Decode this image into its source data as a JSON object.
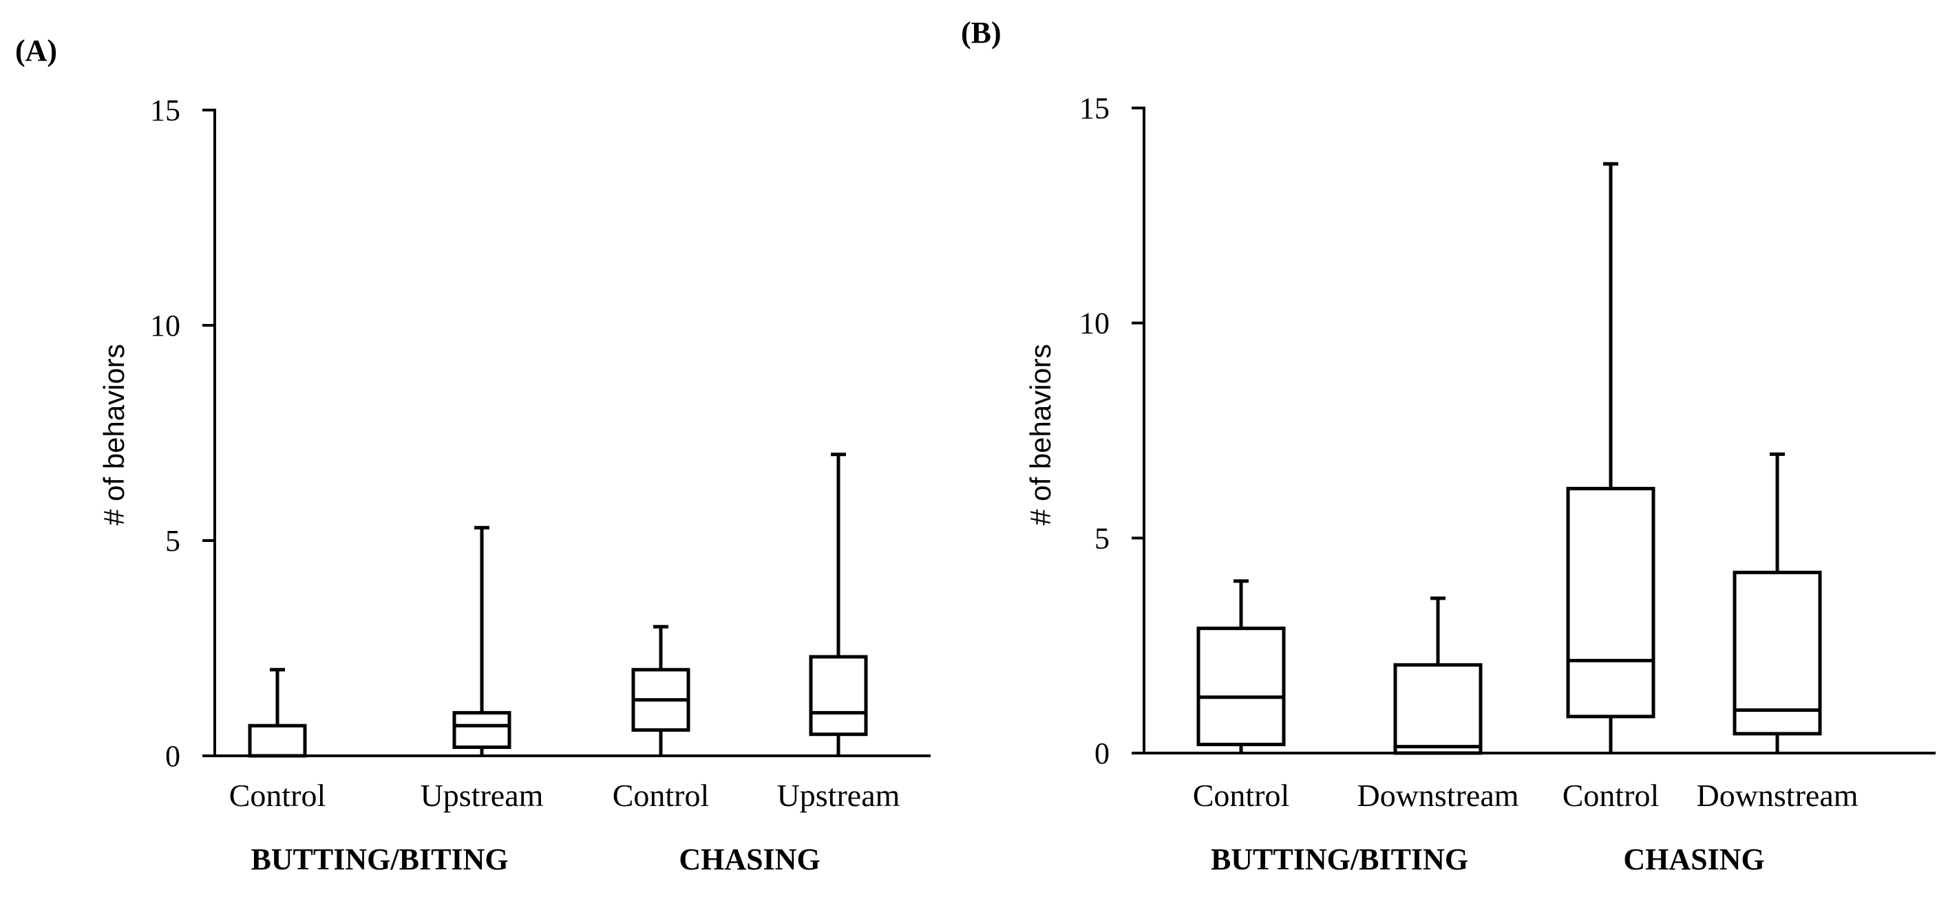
{
  "chart_data": [
    {
      "type": "box",
      "panel_label": "(A)",
      "ylabel": "# of behaviors",
      "ylim": [
        0,
        15
      ],
      "yticks": [
        0,
        5,
        10,
        15
      ],
      "ytick_labels": [
        "0",
        "5",
        "10",
        "15"
      ],
      "categories": [
        "Control",
        "Upstream",
        "Control",
        "Upstream"
      ],
      "groups": [
        {
          "label": "BUTTING/BITING",
          "span": [
            0,
            1
          ]
        },
        {
          "label": "CHASING",
          "span": [
            2,
            3
          ]
        }
      ],
      "boxes": [
        {
          "min": 0,
          "q1": 0,
          "median": 0,
          "q3": 0.7,
          "max": 2
        },
        {
          "min": 0,
          "q1": 0.2,
          "median": 0.7,
          "q3": 1.0,
          "max": 5.3
        },
        {
          "min": 0,
          "q1": 0.6,
          "median": 1.3,
          "q3": 2.0,
          "max": 3
        },
        {
          "min": 0,
          "q1": 0.5,
          "median": 1.0,
          "q3": 2.3,
          "max": 7
        }
      ]
    },
    {
      "type": "box",
      "panel_label": "(B)",
      "ylabel": "# of behaviors",
      "ylim": [
        0,
        15
      ],
      "yticks": [
        0,
        5,
        10,
        15
      ],
      "ytick_labels": [
        "0",
        "5",
        "10",
        "15"
      ],
      "categories": [
        "Control",
        "Downstream",
        "Control",
        "Downstream"
      ],
      "groups": [
        {
          "label": "BUTTING/BITING",
          "span": [
            0,
            1
          ]
        },
        {
          "label": "CHASING",
          "span": [
            2,
            3
          ]
        }
      ],
      "boxes": [
        {
          "min": 0,
          "q1": 0.2,
          "median": 1.3,
          "q3": 2.9,
          "max": 4
        },
        {
          "min": 0,
          "q1": 0,
          "median": 0.15,
          "q3": 2.05,
          "max": 3.6
        },
        {
          "min": 0,
          "q1": 0.85,
          "median": 2.15,
          "q3": 6.15,
          "max": 13.7
        },
        {
          "min": 0,
          "q1": 0.45,
          "median": 1.0,
          "q3": 4.2,
          "max": 6.95
        }
      ]
    }
  ]
}
